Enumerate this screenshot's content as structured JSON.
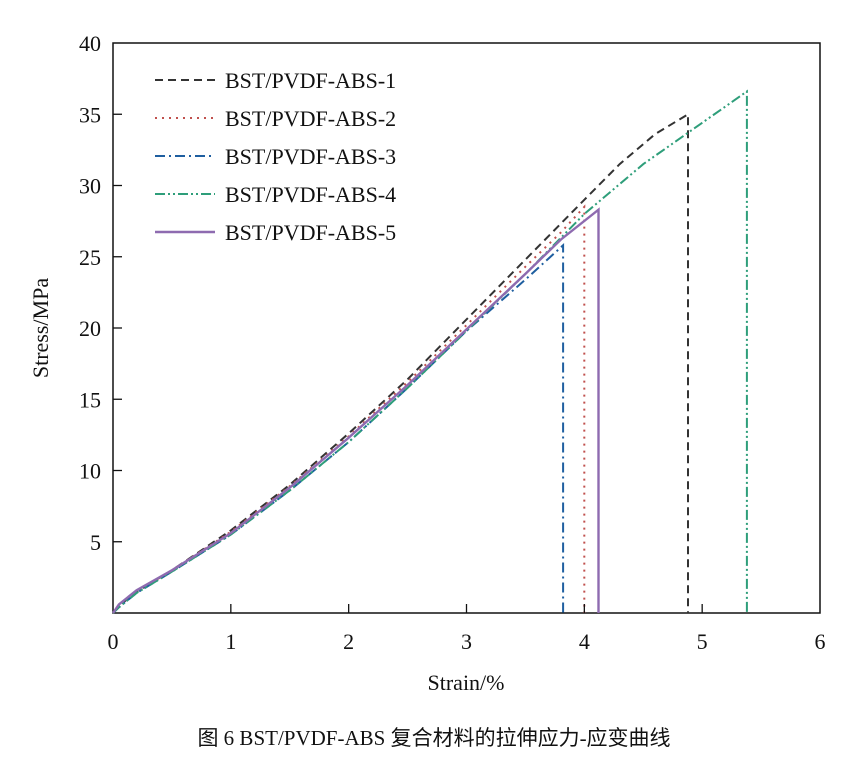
{
  "chart_data": {
    "type": "line",
    "xlabel": "Strain/%",
    "ylabel": "Stress/MPa",
    "xlim": [
      0,
      6
    ],
    "ylim": [
      0,
      40
    ],
    "xticks": [
      0,
      1,
      2,
      3,
      4,
      5,
      6
    ],
    "yticks": [
      5,
      10,
      15,
      20,
      25,
      30,
      35,
      40
    ],
    "grid": false,
    "legend_position": "top-left",
    "series": [
      {
        "name": "BST/PVDF-ABS-1",
        "color": "#333333",
        "dash": "dashed",
        "points": [
          [
            0,
            0
          ],
          [
            0.05,
            0.5
          ],
          [
            0.2,
            1.5
          ],
          [
            0.5,
            3.0
          ],
          [
            1.0,
            5.8
          ],
          [
            1.5,
            9.0
          ],
          [
            2.0,
            12.6
          ],
          [
            2.5,
            16.4
          ],
          [
            3.0,
            20.6
          ],
          [
            3.5,
            24.8
          ],
          [
            4.0,
            29.0
          ],
          [
            4.3,
            31.5
          ],
          [
            4.6,
            33.6
          ],
          [
            4.88,
            35.0
          ],
          [
            4.88,
            0
          ]
        ]
      },
      {
        "name": "BST/PVDF-ABS-2",
        "color": "#c0504d",
        "dash": "dotted",
        "points": [
          [
            0,
            0
          ],
          [
            0.05,
            0.5
          ],
          [
            0.2,
            1.5
          ],
          [
            0.5,
            3.0
          ],
          [
            1.0,
            5.7
          ],
          [
            1.5,
            8.9
          ],
          [
            2.0,
            12.4
          ],
          [
            2.5,
            16.2
          ],
          [
            3.0,
            20.2
          ],
          [
            3.5,
            24.3
          ],
          [
            3.8,
            26.7
          ],
          [
            4.0,
            28.5
          ],
          [
            4.0,
            0
          ]
        ]
      },
      {
        "name": "BST/PVDF-ABS-3",
        "color": "#1f5fa0",
        "dash": "dashdot",
        "points": [
          [
            0,
            0
          ],
          [
            0.05,
            0.4
          ],
          [
            0.2,
            1.4
          ],
          [
            0.5,
            2.9
          ],
          [
            1.0,
            5.5
          ],
          [
            1.5,
            8.6
          ],
          [
            2.0,
            12.0
          ],
          [
            2.5,
            15.8
          ],
          [
            3.0,
            19.8
          ],
          [
            3.5,
            23.4
          ],
          [
            3.82,
            25.8
          ],
          [
            3.82,
            0
          ]
        ]
      },
      {
        "name": "BST/PVDF-ABS-4",
        "color": "#2e9e7a",
        "dash": "dashdotdot",
        "points": [
          [
            0,
            0
          ],
          [
            0.05,
            0.4
          ],
          [
            0.2,
            1.4
          ],
          [
            0.5,
            2.9
          ],
          [
            1.0,
            5.5
          ],
          [
            1.5,
            8.6
          ],
          [
            2.0,
            12.0
          ],
          [
            2.5,
            15.8
          ],
          [
            3.0,
            19.8
          ],
          [
            3.5,
            23.8
          ],
          [
            4.0,
            28.0
          ],
          [
            4.5,
            31.5
          ],
          [
            5.0,
            34.4
          ],
          [
            5.38,
            36.6
          ],
          [
            5.38,
            0
          ]
        ]
      },
      {
        "name": "BST/PVDF-ABS-5",
        "color": "#8e6bb0",
        "dash": "solid",
        "points": [
          [
            0,
            0
          ],
          [
            0.05,
            0.6
          ],
          [
            0.2,
            1.6
          ],
          [
            0.5,
            3.0
          ],
          [
            1.0,
            5.6
          ],
          [
            1.5,
            8.8
          ],
          [
            2.0,
            12.3
          ],
          [
            2.5,
            16.0
          ],
          [
            3.0,
            19.9
          ],
          [
            3.5,
            23.8
          ],
          [
            3.8,
            26.2
          ],
          [
            4.12,
            28.3
          ],
          [
            4.12,
            0
          ]
        ]
      }
    ]
  },
  "caption": "图 6   BST/PVDF-ABS 复合材料的拉伸应力-应变曲线"
}
